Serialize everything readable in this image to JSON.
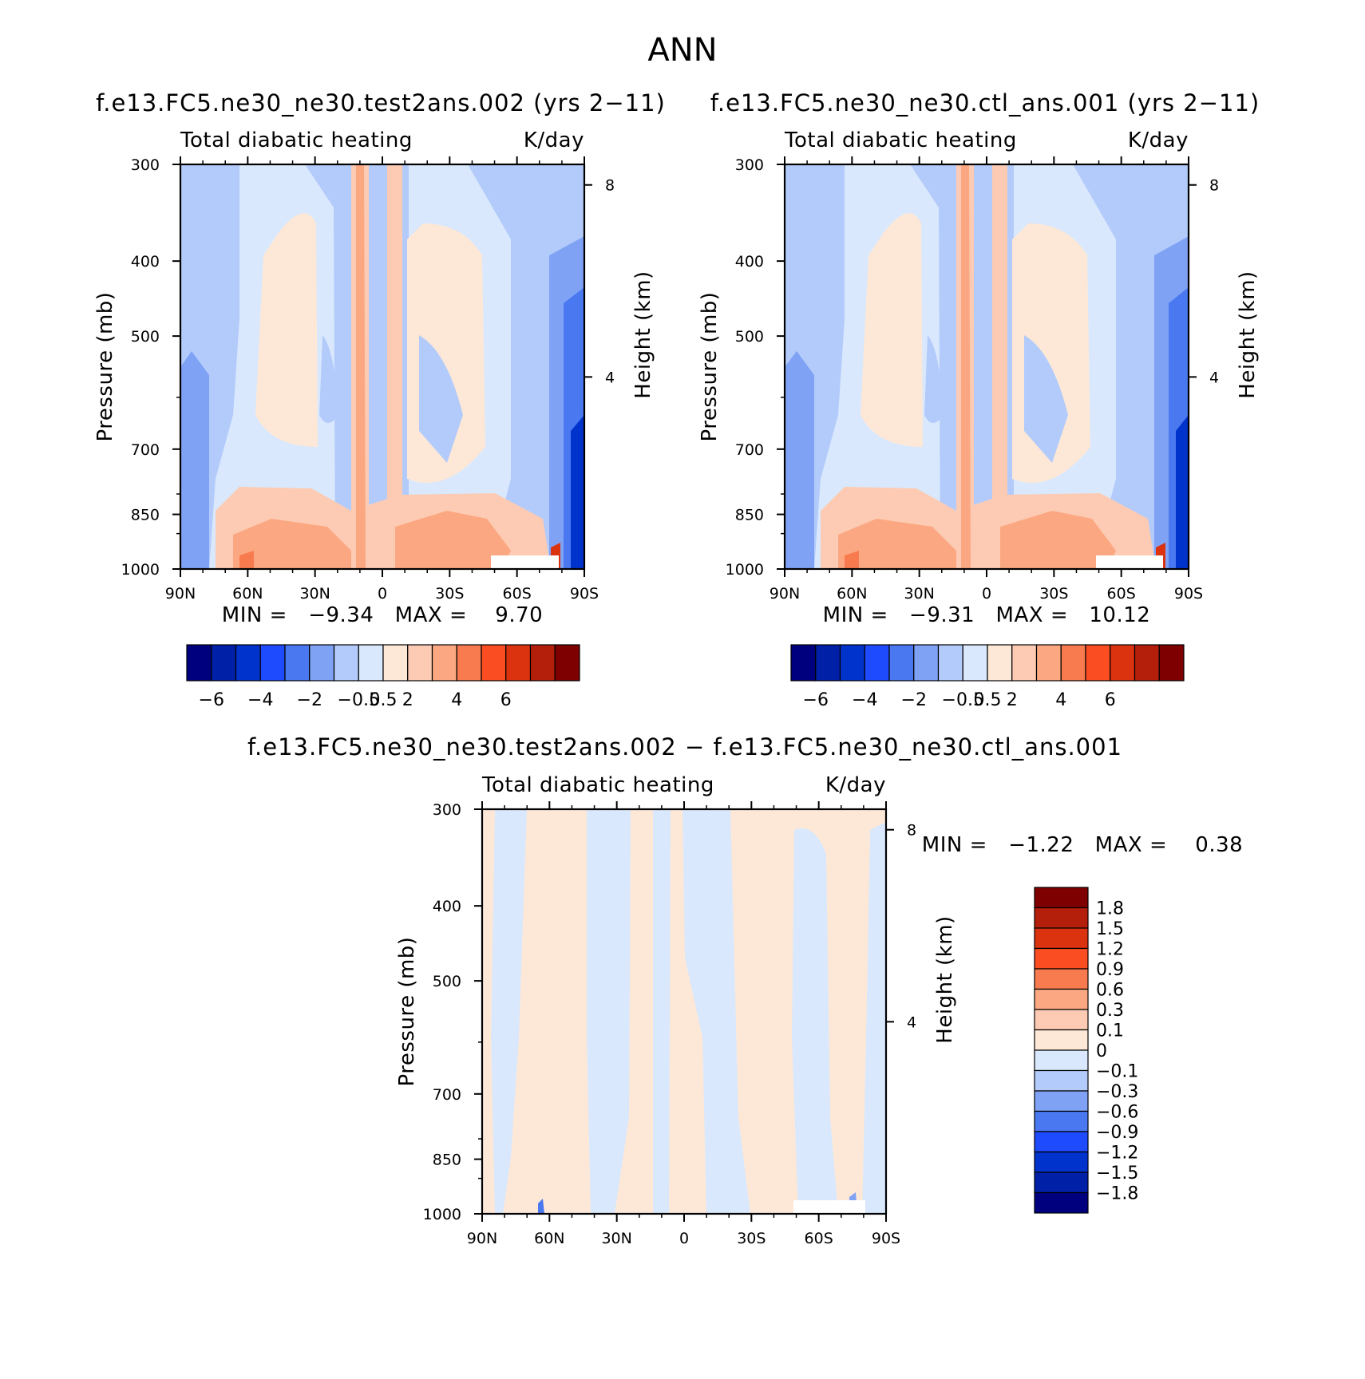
{
  "page_title": "ANN",
  "palette": {
    "main": [
      "#00007f",
      "#0020a8",
      "#0033cc",
      "#1f4bff",
      "#4a78f0",
      "#7fa2f5",
      "#b3cbfb",
      "#d9e8fc",
      "#fde8d7",
      "#fdcbb3",
      "#fba882",
      "#f87b4f",
      "#fb4d22",
      "#db3210",
      "#b31f0a",
      "#7f0000"
    ],
    "diff": [
      "#7f0000",
      "#b31f0a",
      "#db3210",
      "#fb4d22",
      "#f87b4f",
      "#fba882",
      "#fdcbb3",
      "#fde8d7",
      "#d9e8fc",
      "#b3cbfb",
      "#7fa2f5",
      "#4a78f0",
      "#1f4bff",
      "#0033cc",
      "#0020a8",
      "#00007f"
    ]
  },
  "panels": [
    {
      "title": "f.e13.FC5.ne30_ne30.test2ans.002 (yrs 2−11)",
      "field_label": "Total diabatic heating",
      "units": "K/day",
      "ylabel": "Pressure (mb)",
      "y2label": "Height (km)",
      "stats": "MIN =   −9.34   MAX =    9.70"
    },
    {
      "title": "f.e13.FC5.ne30_ne30.ctl_ans.001 (yrs 2−11)",
      "field_label": "Total diabatic heating",
      "units": "K/day",
      "ylabel": "Pressure (mb)",
      "y2label": "Height (km)",
      "stats": "MIN =   −9.31   MAX =   10.12"
    },
    {
      "title": "f.e13.FC5.ne30_ne30.test2ans.002 − f.e13.FC5.ne30_ne30.ctl_ans.001",
      "field_label": "Total diabatic heating",
      "units": "K/day",
      "ylabel": "Pressure (mb)",
      "y2label": "Height (km)",
      "stats": "MIN =   −1.22   MAX =    0.38"
    }
  ],
  "colorbar_main": {
    "tick_labels": [
      "−6",
      "−4",
      "−2",
      "−0.5",
      "0.5",
      "2",
      "4",
      "6"
    ]
  },
  "colorbar_diff": {
    "tick_labels": [
      "1.8",
      "1.5",
      "1.2",
      "0.9",
      "0.6",
      "0.3",
      "0.1",
      "0",
      "−0.1",
      "−0.3",
      "−0.6",
      "−0.9",
      "−1.2",
      "−1.5",
      "−1.8"
    ]
  },
  "chart_data": [
    {
      "type": "heatmap",
      "title": "f.e13.FC5.ne30_ne30.test2ans.002 (yrs 2−11)",
      "xlabel": "",
      "ylabel": "Pressure (mb)",
      "y2label": "Height (km)",
      "x_ticks": [
        "90N",
        "60N",
        "30N",
        "0",
        "30S",
        "60S",
        "90S"
      ],
      "y_ticks": [
        300,
        400,
        500,
        700,
        850,
        1000
      ],
      "y2_ticks": [
        8,
        4
      ],
      "xlim": [
        90,
        -90
      ],
      "ylim": [
        1000,
        300
      ],
      "yscale": "log",
      "levels": [
        -6,
        -5,
        -4,
        -3,
        -2,
        -1,
        -0.5,
        0,
        0.5,
        1,
        2,
        3,
        4,
        5,
        6
      ],
      "min": -9.34,
      "max": 9.7,
      "units": "K/day"
    },
    {
      "type": "heatmap",
      "title": "f.e13.FC5.ne30_ne30.ctl_ans.001 (yrs 2−11)",
      "xlabel": "",
      "ylabel": "Pressure (mb)",
      "y2label": "Height (km)",
      "x_ticks": [
        "90N",
        "60N",
        "30N",
        "0",
        "30S",
        "60S",
        "90S"
      ],
      "y_ticks": [
        300,
        400,
        500,
        700,
        850,
        1000
      ],
      "y2_ticks": [
        8,
        4
      ],
      "xlim": [
        90,
        -90
      ],
      "ylim": [
        1000,
        300
      ],
      "yscale": "log",
      "levels": [
        -6,
        -5,
        -4,
        -3,
        -2,
        -1,
        -0.5,
        0,
        0.5,
        1,
        2,
        3,
        4,
        5,
        6
      ],
      "min": -9.31,
      "max": 10.12,
      "units": "K/day"
    },
    {
      "type": "heatmap",
      "title": "f.e13.FC5.ne30_ne30.test2ans.002 − f.e13.FC5.ne30_ne30.ctl_ans.001",
      "xlabel": "",
      "ylabel": "Pressure (mb)",
      "y2label": "Height (km)",
      "x_ticks": [
        "90N",
        "60N",
        "30N",
        "0",
        "30S",
        "60S",
        "90S"
      ],
      "y_ticks": [
        300,
        400,
        500,
        700,
        850,
        1000
      ],
      "y2_ticks": [
        8,
        4
      ],
      "xlim": [
        90,
        -90
      ],
      "ylim": [
        1000,
        300
      ],
      "yscale": "log",
      "levels": [
        -1.8,
        -1.5,
        -1.2,
        -0.9,
        -0.6,
        -0.3,
        -0.1,
        0,
        0.1,
        0.3,
        0.6,
        0.9,
        1.2,
        1.5,
        1.8
      ],
      "min": -1.22,
      "max": 0.38,
      "units": "K/day"
    }
  ]
}
